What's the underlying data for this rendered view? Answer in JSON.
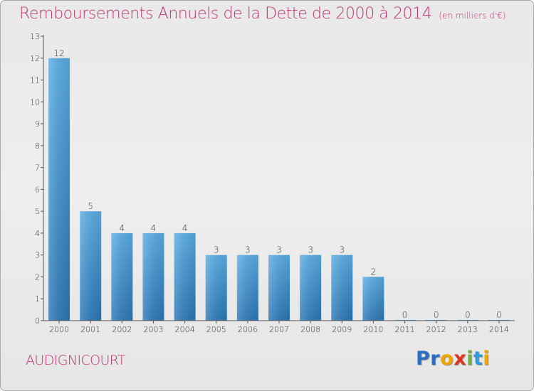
{
  "header": {
    "title": "Remboursements Annuels de la Dette de 2000 à 2014",
    "subtitle": "(en milliers d'€)"
  },
  "footer": {
    "commune": "AUDIGNICOURT",
    "logo": "Proxiti"
  },
  "colors": {
    "title": "#c0336f",
    "bar_light": "#5aaee6",
    "bar_dark": "#2a78b8",
    "logo_letters": [
      "#2a6fc4",
      "#f0a400",
      "#e0341f",
      "#6db33f",
      "#2f9ad6"
    ]
  },
  "chart_data": {
    "type": "bar",
    "title": "Remboursements Annuels de la Dette de 2000 à 2014",
    "subtitle": "(en milliers d'€)",
    "xlabel": "",
    "ylabel": "",
    "categories": [
      "2000",
      "2001",
      "2002",
      "2003",
      "2004",
      "2005",
      "2006",
      "2007",
      "2008",
      "2009",
      "2010",
      "2011",
      "2012",
      "2013",
      "2014"
    ],
    "values": [
      12,
      5,
      4,
      4,
      4,
      3,
      3,
      3,
      3,
      3,
      2,
      0,
      0,
      0,
      0
    ],
    "data_labels": [
      "12",
      "5",
      "4",
      "4",
      "4",
      "3",
      "3",
      "3",
      "3",
      "3",
      "2",
      "0",
      "0",
      "0",
      "0"
    ],
    "ylim": [
      0,
      13
    ],
    "yticks": [
      0,
      1,
      2,
      3,
      4,
      5,
      6,
      7,
      8,
      9,
      10,
      11,
      12,
      13
    ],
    "ytick_labels": [
      "0",
      "1",
      "2",
      "3",
      "4",
      "5",
      "6",
      "7",
      "8",
      "9",
      "10",
      "11",
      "12",
      "13"
    ],
    "grid": false,
    "legend": "none"
  }
}
